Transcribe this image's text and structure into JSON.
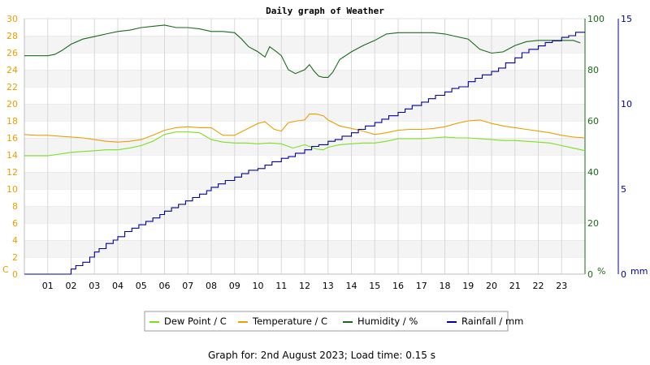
{
  "chart_data": {
    "type": "line",
    "title": "Daily graph of Weather",
    "footer": "Graph for: 2nd August 2023; Load time: 0.15 s",
    "colors": {
      "temperature": "#e8a000",
      "dew_point": "#7ce020",
      "humidity": "#1a6a1a",
      "rainfall": "#0000a0",
      "left_axis": "#e8a000",
      "humidity_axis": "#1a6a1a",
      "rain_axis": "#0000a0"
    },
    "x_axis": {
      "min": 0,
      "max": 24,
      "tick_labels": [
        "01",
        "02",
        "03",
        "04",
        "05",
        "06",
        "07",
        "08",
        "09",
        "10",
        "11",
        "12",
        "13",
        "14",
        "15",
        "16",
        "17",
        "18",
        "19",
        "20",
        "21",
        "22",
        "23"
      ]
    },
    "left_axis": {
      "unit": "C",
      "min": 0,
      "max": 30,
      "tick_labels": [
        "0",
        "2",
        "4",
        "6",
        "8",
        "10",
        "12",
        "14",
        "16",
        "18",
        "20",
        "22",
        "24",
        "26",
        "28",
        "30"
      ]
    },
    "humidity_axis": {
      "unit": "%",
      "min": 0,
      "max": 100,
      "tick_labels": [
        "0",
        "20",
        "40",
        "60",
        "80",
        "100"
      ]
    },
    "rain_axis": {
      "unit": "mm",
      "min": 0,
      "max": 15,
      "tick_labels": [
        "0",
        "5",
        "10",
        "15"
      ]
    },
    "legend": {
      "placement": "bottom",
      "entries": [
        {
          "key": "dew_point",
          "label": "Dew Point / C"
        },
        {
          "key": "temperature",
          "label": "Temperature / C"
        },
        {
          "key": "humidity",
          "label": "Humidity / %"
        },
        {
          "key": "rainfall",
          "label": "Rainfall / mm"
        }
      ]
    },
    "series": [
      {
        "key": "temperature",
        "name": "Temperature / C",
        "axis": "left",
        "step": false,
        "x": [
          0,
          0.5,
          1,
          1.5,
          2,
          2.5,
          3,
          3.5,
          4,
          4.5,
          5,
          5.5,
          6,
          6.5,
          7,
          7.5,
          8,
          8.5,
          9,
          9.5,
          10,
          10.3,
          10.7,
          11,
          11.3,
          11.7,
          12,
          12.2,
          12.5,
          12.8,
          13,
          13.5,
          14,
          14.5,
          15,
          15.5,
          16,
          16.5,
          17,
          17.5,
          18,
          18.5,
          19,
          19.5,
          20,
          20.5,
          21,
          21.5,
          22,
          22.5,
          23,
          23.5,
          24
        ],
        "y": [
          16.4,
          16.3,
          16.3,
          16.2,
          16.1,
          16.0,
          15.8,
          15.6,
          15.5,
          15.6,
          15.8,
          16.3,
          16.9,
          17.2,
          17.3,
          17.2,
          17.2,
          16.3,
          16.3,
          17.0,
          17.7,
          17.9,
          17.0,
          16.8,
          17.8,
          18.0,
          18.1,
          18.8,
          18.8,
          18.6,
          18.1,
          17.4,
          17.1,
          16.8,
          16.4,
          16.6,
          16.9,
          17.0,
          17.0,
          17.1,
          17.3,
          17.7,
          18.0,
          18.1,
          17.7,
          17.4,
          17.2,
          17.0,
          16.8,
          16.6,
          16.3,
          16.1,
          16.0
        ]
      },
      {
        "key": "dew_point",
        "name": "Dew Point / C",
        "axis": "left",
        "step": false,
        "x": [
          0,
          0.5,
          1,
          1.5,
          2,
          2.5,
          3,
          3.5,
          4,
          4.5,
          5,
          5.5,
          6,
          6.5,
          7,
          7.5,
          8,
          8.5,
          9,
          9.5,
          10,
          10.5,
          11,
          11.5,
          12,
          12.2,
          12.5,
          12.8,
          13,
          13.5,
          14,
          14.5,
          15,
          15.5,
          16,
          16.5,
          17,
          17.5,
          18,
          18.5,
          19,
          19.5,
          20,
          20.5,
          21,
          21.5,
          22,
          22.5,
          23,
          23.5,
          24
        ],
        "y": [
          13.9,
          13.9,
          13.9,
          14.1,
          14.3,
          14.4,
          14.5,
          14.6,
          14.6,
          14.8,
          15.1,
          15.6,
          16.4,
          16.7,
          16.7,
          16.6,
          15.8,
          15.5,
          15.4,
          15.4,
          15.3,
          15.4,
          15.3,
          14.8,
          15.2,
          15.0,
          14.7,
          14.6,
          14.9,
          15.2,
          15.3,
          15.4,
          15.4,
          15.6,
          15.9,
          15.9,
          15.9,
          16.0,
          16.1,
          16.0,
          16.0,
          15.9,
          15.8,
          15.7,
          15.7,
          15.6,
          15.5,
          15.4,
          15.1,
          14.8,
          14.5
        ]
      },
      {
        "key": "humidity",
        "name": "Humidity / %",
        "axis": "humidity",
        "step": false,
        "x": [
          0,
          0.5,
          1,
          1.3,
          1.6,
          2,
          2.5,
          3,
          3.5,
          4,
          4.5,
          5,
          5.5,
          6,
          6.5,
          7,
          7.5,
          8,
          8.5,
          9,
          9.3,
          9.6,
          10,
          10.3,
          10.5,
          10.8,
          11,
          11.3,
          11.6,
          12,
          12.2,
          12.4,
          12.6,
          12.8,
          13,
          13.2,
          13.5,
          14,
          14.5,
          15,
          15.5,
          16,
          16.5,
          17,
          17.5,
          18,
          18.5,
          19,
          19.5,
          20,
          20.5,
          21,
          21.5,
          22,
          22.5,
          23,
          23.5,
          23.8
        ],
        "y": [
          85.5,
          85.5,
          85.5,
          86.0,
          87.5,
          90.0,
          92.0,
          93.0,
          94.0,
          95.0,
          95.5,
          96.5,
          97.0,
          97.5,
          96.5,
          96.5,
          96.0,
          95.0,
          95.0,
          94.5,
          92.0,
          89.0,
          87.0,
          85.0,
          89.0,
          87.0,
          85.5,
          80.0,
          78.5,
          80.0,
          82.0,
          79.5,
          77.5,
          77.0,
          77.0,
          79.0,
          84.0,
          87.0,
          89.5,
          91.5,
          94.0,
          94.5,
          94.5,
          94.5,
          94.5,
          94.0,
          93.0,
          92.0,
          88.0,
          86.5,
          87.0,
          89.5,
          91.0,
          91.5,
          91.5,
          91.5,
          91.5,
          90.5
        ]
      },
      {
        "key": "rainfall",
        "name": "Rainfall / mm",
        "axis": "rain",
        "step": true,
        "x": [
          0,
          1,
          1.8,
          2,
          2.2,
          2.5,
          2.8,
          3,
          3.2,
          3.5,
          3.8,
          4,
          4.3,
          4.6,
          4.9,
          5.2,
          5.5,
          5.8,
          6,
          6.3,
          6.6,
          6.9,
          7.2,
          7.5,
          7.8,
          8,
          8.3,
          8.6,
          9,
          9.3,
          9.6,
          10,
          10.3,
          10.6,
          11,
          11.3,
          11.6,
          12,
          12.3,
          12.6,
          13,
          13.3,
          13.6,
          14,
          14.3,
          14.6,
          15,
          15.3,
          15.6,
          16,
          16.3,
          16.6,
          17,
          17.3,
          17.6,
          18,
          18.3,
          18.6,
          19,
          19.3,
          19.6,
          20,
          20.3,
          20.6,
          21,
          21.3,
          21.6,
          22,
          22.3,
          22.6,
          23,
          23.3,
          23.6,
          24
        ],
        "y": [
          0,
          0,
          0,
          0.3,
          0.5,
          0.7,
          1.0,
          1.3,
          1.5,
          1.8,
          2.0,
          2.2,
          2.5,
          2.7,
          2.9,
          3.1,
          3.3,
          3.5,
          3.7,
          3.9,
          4.1,
          4.3,
          4.5,
          4.7,
          4.9,
          5.1,
          5.3,
          5.5,
          5.7,
          5.9,
          6.1,
          6.2,
          6.4,
          6.6,
          6.8,
          6.9,
          7.1,
          7.3,
          7.5,
          7.6,
          7.8,
          7.9,
          8.1,
          8.3,
          8.5,
          8.7,
          8.9,
          9.1,
          9.3,
          9.5,
          9.7,
          9.9,
          10.1,
          10.3,
          10.5,
          10.7,
          10.9,
          11.0,
          11.3,
          11.5,
          11.7,
          11.9,
          12.1,
          12.4,
          12.7,
          13.0,
          13.2,
          13.4,
          13.6,
          13.7,
          13.9,
          14.0,
          14.2,
          14.2
        ]
      }
    ]
  }
}
